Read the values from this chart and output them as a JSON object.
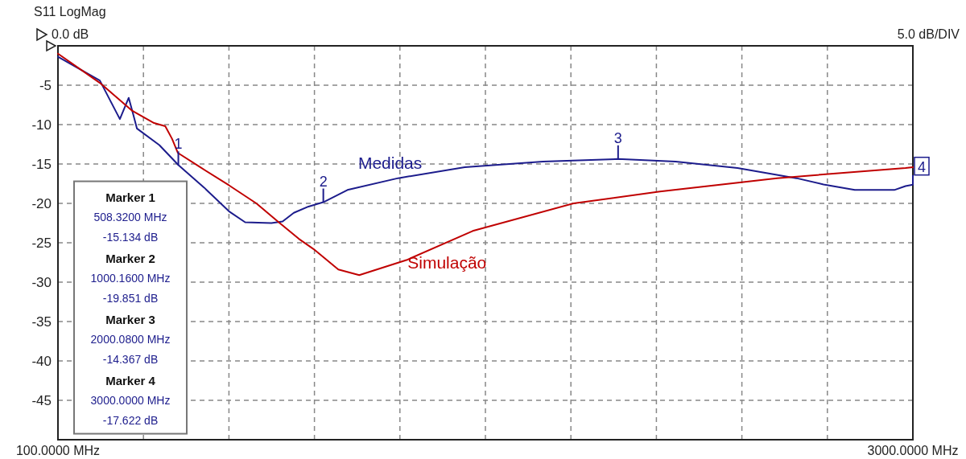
{
  "chart_data": {
    "type": "line",
    "title": "S11 LogMag",
    "subtitle": "0.0 dB",
    "xlim": [
      100,
      3000
    ],
    "xticks": [
      {
        "value": 100,
        "label": "100.0000 MHz"
      },
      {
        "value": 390,
        "label": null
      },
      {
        "value": 680,
        "label": null
      },
      {
        "value": 970,
        "label": null
      },
      {
        "value": 1260,
        "label": null
      },
      {
        "value": 1550,
        "label": null
      },
      {
        "value": 1840,
        "label": null
      },
      {
        "value": 2130,
        "label": null
      },
      {
        "value": 2420,
        "label": null
      },
      {
        "value": 2710,
        "label": null
      },
      {
        "value": 3000,
        "label": "3000.0000 MHz"
      }
    ],
    "ylim": [
      -50,
      0
    ],
    "yticks": [
      {
        "value": 0,
        "label": null
      },
      -5,
      -10,
      -15,
      -20,
      -25,
      -30,
      -35,
      -40,
      -45,
      {
        "value": -50,
        "label": null
      }
    ],
    "grid": true,
    "line_style": "solid",
    "series": [
      {
        "name": "Medidas",
        "color": "#1c1c8c",
        "x": [
          100,
          242,
          310,
          340,
          356,
          368,
          444,
          508.32,
          596,
          680,
          735,
          824,
          862,
          900,
          950,
          1000.16,
          1082,
          1254,
          1480,
          1745,
          2000.08,
          2195,
          2405,
          2605,
          2697,
          2803,
          2937,
          2975,
          3000
        ],
        "values": [
          -1.4,
          -4.4,
          -9.3,
          -6.6,
          -8.8,
          -10.5,
          -12.6,
          -15.134,
          -18.0,
          -21.0,
          -22.4,
          -22.5,
          -22.3,
          -21.2,
          -20.4,
          -19.851,
          -18.3,
          -16.8,
          -15.4,
          -14.7,
          -14.367,
          -14.7,
          -15.5,
          -16.8,
          -17.6,
          -18.3,
          -18.3,
          -17.8,
          -17.622
        ]
      },
      {
        "name": "Simulação",
        "color": "#c00000",
        "x": [
          100,
          242,
          350,
          426,
          464,
          487,
          507,
          578,
          680,
          773,
          849,
          917,
          967,
          1051,
          1122,
          1282,
          1507,
          1849,
          2142,
          2539,
          2975,
          3000
        ],
        "values": [
          -1.0,
          -4.7,
          -8.2,
          -9.8,
          -10.2,
          -11.8,
          -13.6,
          -15.3,
          -17.7,
          -20.0,
          -22.4,
          -24.5,
          -25.8,
          -28.4,
          -29.1,
          -27.2,
          -23.5,
          -20.0,
          -18.5,
          -16.8,
          -15.5,
          -15.4
        ]
      }
    ],
    "annotations": [
      "5.0 dB/DIV",
      "Marker 1",
      "508.3200 MHz",
      "-15.134 dB",
      "Marker 2",
      "1000.1600 MHz",
      "-19.851 dB",
      "Marker 3",
      "2000.0800 MHz",
      "-14.367 dB",
      "Marker 4",
      "3000.0000 MHz",
      "-17.622 dB",
      {
        "text": "1",
        "x": 508.32,
        "y": -15.134
      },
      {
        "text": "2",
        "x": 1000.16,
        "y": -19.851
      },
      {
        "text": "3",
        "x": 2000.08,
        "y": -14.367
      },
      {
        "text": "4",
        "x": 3000,
        "y": -17.622
      }
    ]
  }
}
